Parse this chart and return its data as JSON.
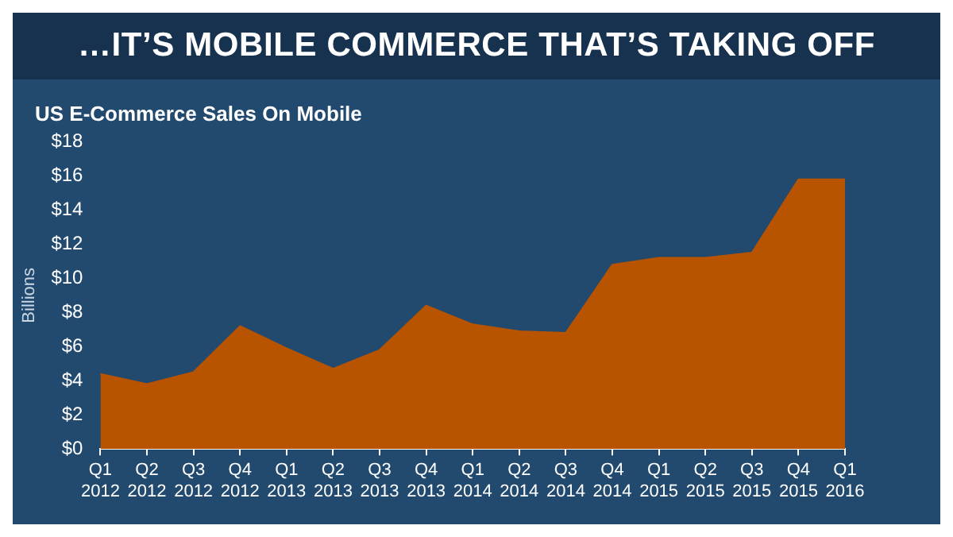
{
  "chart_data": {
    "type": "area",
    "title": "…IT’S MOBILE COMMERCE THAT’S TAKING OFF",
    "subtitle": "US E-Commerce Sales On Mobile",
    "ylabel": "Billions",
    "categories": [
      "Q1 2012",
      "Q2 2012",
      "Q3 2012",
      "Q4 2012",
      "Q1 2013",
      "Q2 2013",
      "Q3 2013",
      "Q4 2013",
      "Q1 2014",
      "Q2 2014",
      "Q3 2014",
      "Q4 2014",
      "Q1 2015",
      "Q2 2015",
      "Q3 2015",
      "Q4 2015",
      "Q1 2016"
    ],
    "series": [
      {
        "color": "#b85400",
        "values": [
          4.4,
          3.8,
          4.5,
          7.2,
          5.9,
          4.7,
          5.8,
          8.4,
          7.3,
          6.9,
          6.8,
          10.8,
          11.2,
          11.2,
          11.5,
          15.8,
          15.8
        ]
      }
    ],
    "ylim": [
      0,
      18
    ],
    "yticks": [
      {
        "value": 0,
        "label": "$0"
      },
      {
        "value": 2,
        "label": "$2"
      },
      {
        "value": 4,
        "label": "$4"
      },
      {
        "value": 6,
        "label": "$6"
      },
      {
        "value": 8,
        "label": "$8"
      },
      {
        "value": 10,
        "label": "$10"
      },
      {
        "value": 12,
        "label": "$12"
      },
      {
        "value": 14,
        "label": "$14"
      },
      {
        "value": 16,
        "label": "$16"
      },
      {
        "value": 18,
        "label": "$18"
      }
    ],
    "grid": false,
    "legend": false
  }
}
